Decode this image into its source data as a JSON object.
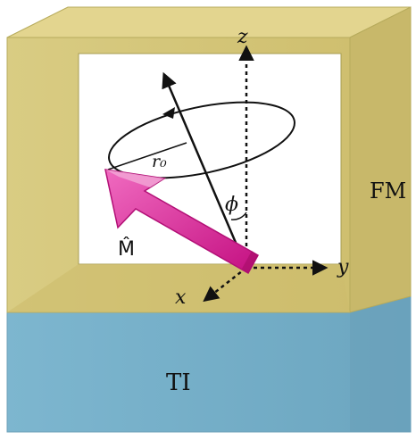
{
  "labels": {
    "layer_top": "FM",
    "layer_bottom": "TI",
    "axis_x": "x",
    "axis_y": "y",
    "axis_z": "z",
    "angle": "ϕ",
    "radius": "r₀",
    "moment": "M̂"
  },
  "colors": {
    "fm_layer": "#d7c97a",
    "fm_layer_dark": "#bdb05f",
    "ti_layer": "#7fb6cf",
    "ti_layer_dark": "#5d94b0",
    "moment_arrow": "#d6168e",
    "moment_arrow_light": "#ee7cc3",
    "line": "#111111"
  },
  "icons": {
    "moment_arrow": "magnetization-arrow-icon",
    "precession_loop": "precession-circle-icon",
    "axis_arrows": "axis-arrow-icon"
  }
}
